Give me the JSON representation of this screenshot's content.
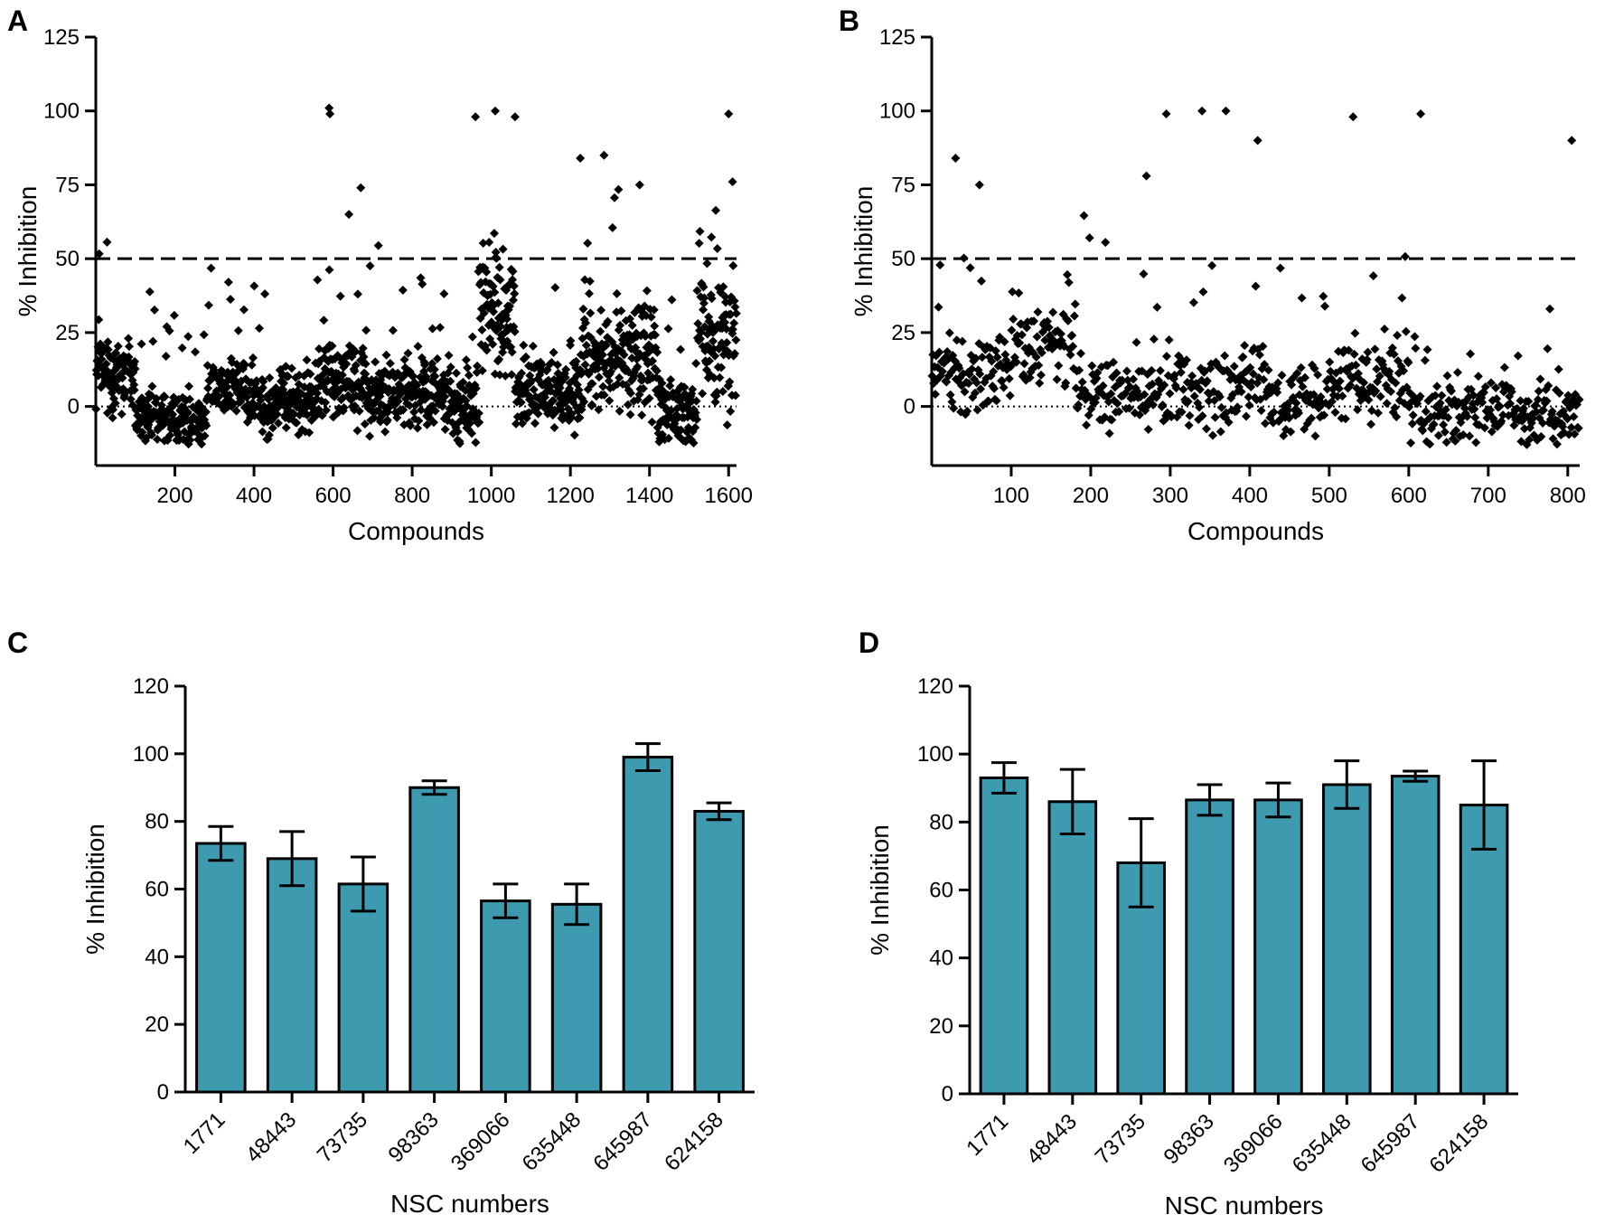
{
  "colors": {
    "bar_fill": "#3d9aaf",
    "marker": "#000000",
    "axis": "#000000"
  },
  "chart_data": [
    {
      "id": "A",
      "type": "scatter",
      "panel_label": "A",
      "xlabel": "Compounds",
      "ylabel": "% Inhibition",
      "xlim": [
        0,
        1620
      ],
      "ylim": [
        -20,
        125
      ],
      "xticks": [
        200,
        400,
        600,
        800,
        1000,
        1200,
        1400,
        1600
      ],
      "yticks": [
        0,
        25,
        50,
        75,
        100,
        125
      ],
      "threshold_line": 50,
      "zero_line": 0,
      "n_points": 1620,
      "approx_highlights": [
        {
          "x": 590,
          "y": 101
        },
        {
          "x": 592,
          "y": 99
        },
        {
          "x": 640,
          "y": 65
        },
        {
          "x": 670,
          "y": 74
        },
        {
          "x": 960,
          "y": 98
        },
        {
          "x": 1010,
          "y": 100
        },
        {
          "x": 1060,
          "y": 98
        },
        {
          "x": 1225,
          "y": 84
        },
        {
          "x": 1285,
          "y": 85
        },
        {
          "x": 1375,
          "y": 75
        },
        {
          "x": 1600,
          "y": 99
        },
        {
          "x": 1610,
          "y": 76
        }
      ],
      "segments": [
        {
          "from": 0,
          "to": 100,
          "base": 12,
          "spread": 10
        },
        {
          "from": 100,
          "to": 280,
          "base": -4,
          "spread": 6
        },
        {
          "from": 280,
          "to": 380,
          "base": 7,
          "spread": 6
        },
        {
          "from": 380,
          "to": 560,
          "base": 2,
          "spread": 8
        },
        {
          "from": 560,
          "to": 680,
          "base": 10,
          "spread": 10
        },
        {
          "from": 680,
          "to": 900,
          "base": 4,
          "spread": 9
        },
        {
          "from": 900,
          "to": 970,
          "base": 0,
          "spread": 9
        },
        {
          "from": 970,
          "to": 1060,
          "base": 30,
          "spread": 14
        },
        {
          "from": 1060,
          "to": 1230,
          "base": 5,
          "spread": 9
        },
        {
          "from": 1230,
          "to": 1420,
          "base": 17,
          "spread": 13
        },
        {
          "from": 1420,
          "to": 1520,
          "base": -2,
          "spread": 9
        },
        {
          "from": 1520,
          "to": 1620,
          "base": 22,
          "spread": 16
        }
      ]
    },
    {
      "id": "B",
      "type": "scatter",
      "panel_label": "B",
      "xlabel": "Compounds",
      "ylabel": "% Inhibition",
      "xlim": [
        0,
        815
      ],
      "ylim": [
        -20,
        125
      ],
      "xticks": [
        100,
        200,
        300,
        400,
        500,
        600,
        700,
        800
      ],
      "yticks": [
        0,
        25,
        50,
        75,
        100,
        125
      ],
      "threshold_line": 50,
      "zero_line": 0,
      "n_points": 815,
      "approx_highlights": [
        {
          "x": 30,
          "y": 84
        },
        {
          "x": 60,
          "y": 75
        },
        {
          "x": 270,
          "y": 78
        },
        {
          "x": 295,
          "y": 99
        },
        {
          "x": 340,
          "y": 100
        },
        {
          "x": 370,
          "y": 100
        },
        {
          "x": 410,
          "y": 90
        },
        {
          "x": 530,
          "y": 98
        },
        {
          "x": 615,
          "y": 99
        },
        {
          "x": 805,
          "y": 90
        }
      ],
      "segments": [
        {
          "from": 0,
          "to": 100,
          "base": 12,
          "spread": 9
        },
        {
          "from": 100,
          "to": 180,
          "base": 20,
          "spread": 10
        },
        {
          "from": 180,
          "to": 300,
          "base": 5,
          "spread": 9
        },
        {
          "from": 300,
          "to": 420,
          "base": 6,
          "spread": 11
        },
        {
          "from": 420,
          "to": 500,
          "base": 2,
          "spread": 8
        },
        {
          "from": 500,
          "to": 600,
          "base": 8,
          "spread": 10
        },
        {
          "from": 600,
          "to": 815,
          "base": -2,
          "spread": 7
        }
      ]
    },
    {
      "id": "C",
      "type": "bar",
      "panel_label": "C",
      "xlabel": "NSC numbers",
      "ylabel": "% Inhibition",
      "ylim": [
        0,
        120
      ],
      "yticks": [
        0,
        20,
        40,
        60,
        80,
        100,
        120
      ],
      "categories": [
        "1771",
        "48443",
        "73735",
        "98363",
        "369066",
        "635448",
        "645987",
        "624158"
      ],
      "values": [
        73.5,
        69,
        61.5,
        90,
        56.5,
        55.5,
        99,
        83
      ],
      "errors": [
        5,
        8,
        8,
        2,
        5,
        6,
        4,
        2.5
      ]
    },
    {
      "id": "D",
      "type": "bar",
      "panel_label": "D",
      "xlabel": "NSC numbers",
      "ylabel": "% Inhibition",
      "ylim": [
        0,
        120
      ],
      "yticks": [
        0,
        20,
        40,
        60,
        80,
        100,
        120
      ],
      "categories": [
        "1771",
        "48443",
        "73735",
        "98363",
        "369066",
        "635448",
        "645987",
        "624158"
      ],
      "values": [
        93,
        86,
        68,
        86.5,
        86.5,
        91,
        93.5,
        85
      ],
      "errors": [
        4.5,
        9.5,
        13,
        4.5,
        5,
        7,
        1.5,
        13
      ]
    }
  ]
}
